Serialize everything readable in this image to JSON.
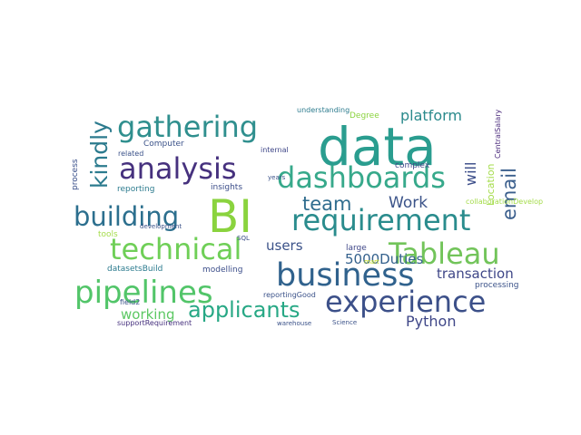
{
  "words": [
    {
      "id": "data",
      "text": "data",
      "color": "#2a9d8f"
    },
    {
      "id": "bi",
      "text": "BI",
      "color": "#8ad33e"
    },
    {
      "id": "gathering",
      "text": "gathering",
      "color": "#2f8f8e"
    },
    {
      "id": "analysis",
      "text": "analysis",
      "color": "#46317e"
    },
    {
      "id": "dashboards",
      "text": "dashboards",
      "color": "#37a98b"
    },
    {
      "id": "requirement",
      "text": "requirement",
      "color": "#2a8c8d"
    },
    {
      "id": "building",
      "text": "building",
      "color": "#2c6f8e"
    },
    {
      "id": "technical",
      "text": "technical",
      "color": "#6fcf57"
    },
    {
      "id": "tableau",
      "text": "Tableau",
      "color": "#72c45a"
    },
    {
      "id": "business",
      "text": "business",
      "color": "#30628d"
    },
    {
      "id": "pipelines",
      "text": "pipelines",
      "color": "#52c569"
    },
    {
      "id": "experience",
      "text": "experience",
      "color": "#3c5089"
    },
    {
      "id": "applicants",
      "text": "applicants",
      "color": "#27a885"
    },
    {
      "id": "kindly",
      "text": "kindly",
      "color": "#2c7b8e"
    },
    {
      "id": "email",
      "text": "email",
      "color": "#3b5f8d"
    },
    {
      "id": "will",
      "text": "will",
      "color": "#3b4d89"
    },
    {
      "id": "location",
      "text": "Location",
      "color": "#a5dc4b"
    },
    {
      "id": "central-salary",
      "text": "CentralSalary",
      "color": "#48277a"
    },
    {
      "id": "process",
      "text": "process",
      "color": "#394f8a"
    },
    {
      "id": "team",
      "text": "team",
      "color": "#2f6c8e"
    },
    {
      "id": "work",
      "text": "Work",
      "color": "#3b5389"
    },
    {
      "id": "platform",
      "text": "platform",
      "color": "#2a8a8c"
    },
    {
      "id": "users",
      "text": "users",
      "color": "#3b5289"
    },
    {
      "id": "duties",
      "text": "5000Duties",
      "color": "#34618d"
    },
    {
      "id": "transaction",
      "text": "transaction",
      "color": "#3f4788"
    },
    {
      "id": "working",
      "text": "working",
      "color": "#5cc863"
    },
    {
      "id": "python",
      "text": "Python",
      "color": "#3f4788"
    },
    {
      "id": "collaboration",
      "text": "collaborationDevelop",
      "color": "#a5dc4b"
    },
    {
      "id": "computer",
      "text": "Computer",
      "color": "#3b5289"
    },
    {
      "id": "related",
      "text": "related",
      "color": "#3b5289"
    },
    {
      "id": "internal",
      "text": "internal",
      "color": "#3f4788"
    },
    {
      "id": "complex",
      "text": "complex",
      "color": "#3f4788"
    },
    {
      "id": "degree",
      "text": "Degree",
      "color": "#8ad33e"
    },
    {
      "id": "understanding",
      "text": "understanding",
      "color": "#2c7b8e"
    },
    {
      "id": "reporting",
      "text": "reporting",
      "color": "#2c7b8e"
    },
    {
      "id": "insights",
      "text": "insights",
      "color": "#3b4d89"
    },
    {
      "id": "years",
      "text": "years",
      "color": "#3b5289"
    },
    {
      "id": "development",
      "text": "development",
      "color": "#3b5289"
    },
    {
      "id": "tools",
      "text": "tools",
      "color": "#a5dc4b"
    },
    {
      "id": "sql",
      "text": "SQL",
      "color": "#3b4d89"
    },
    {
      "id": "large",
      "text": "large",
      "color": "#3f4788"
    },
    {
      "id": "datasets-build",
      "text": "datasetsBuild",
      "color": "#2c7b8e"
    },
    {
      "id": "modelling",
      "text": "modelling",
      "color": "#3b4d89"
    },
    {
      "id": "mart",
      "text": "mart",
      "color": "#c7e020"
    },
    {
      "id": "processing",
      "text": "processing",
      "color": "#3b5289"
    },
    {
      "id": "field2",
      "text": "field2",
      "color": "#3b5289"
    },
    {
      "id": "reporting-good",
      "text": "reportingGood",
      "color": "#3b5289"
    },
    {
      "id": "support-requirement",
      "text": "supportRequirement",
      "color": "#46317e"
    },
    {
      "id": "warehouse",
      "text": "warehouse",
      "color": "#3b5289"
    },
    {
      "id": "science",
      "text": "Science",
      "color": "#3b5289"
    }
  ]
}
